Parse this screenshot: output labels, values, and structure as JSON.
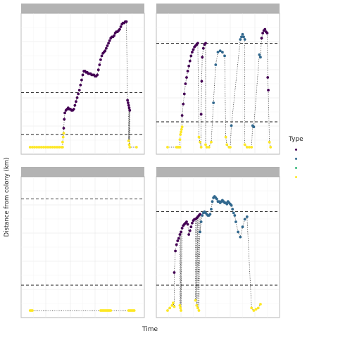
{
  "chart_data": {
    "type": "scatter",
    "xlabel": "Time",
    "ylabel": "Distance from colony (km)",
    "legend": {
      "title": "Type",
      "position": "right",
      "entries": [
        {
          "key": "type1",
          "label": "",
          "color": "#440154"
        },
        {
          "key": "type2",
          "label": "",
          "color": "#31688E"
        },
        {
          "key": "type3",
          "label": "",
          "color": "#35B779"
        },
        {
          "key": "type4",
          "label": "",
          "color": "#FDE725"
        }
      ]
    },
    "connector": "dotted",
    "grid": true,
    "strip_color": "#b3b3b3",
    "ylim": [
      0,
      100
    ],
    "xlim": [
      0,
      100
    ],
    "panels": [
      {
        "reference_lines_y": [
          10,
          43
        ],
        "series": [
          {
            "type": "type4",
            "x": [
              3,
              5,
              7,
              9,
              11,
              13,
              15,
              17,
              19,
              21,
              23,
              25,
              27,
              29,
              31,
              32
            ],
            "y": [
              0,
              0,
              0,
              0,
              0,
              0,
              0,
              0,
              0,
              0,
              0,
              0,
              0,
              0,
              0,
              0
            ]
          },
          {
            "type": "type4",
            "x": [
              32,
              32.5,
              33
            ],
            "y": [
              4,
              8,
              11
            ]
          },
          {
            "type": "type1",
            "x": [
              33,
              33.5,
              34,
              35,
              36,
              37,
              38,
              39,
              40,
              41,
              42,
              43,
              44,
              45,
              46,
              47,
              48,
              49,
              50,
              51,
              52,
              53,
              54,
              55,
              56,
              57,
              58,
              59,
              60,
              61,
              62,
              63,
              64,
              65,
              66,
              67,
              68,
              69,
              70,
              71,
              72,
              73,
              74,
              75,
              76,
              77,
              78,
              79,
              80,
              81,
              82,
              83,
              84,
              85,
              86,
              87,
              88,
              89
            ],
            "y": [
              15,
              22,
              27,
              29,
              30,
              31,
              30,
              30,
              29,
              29,
              30,
              33,
              36,
              39,
              42,
              45,
              49,
              53,
              57,
              60,
              60,
              59,
              59,
              58,
              58,
              58,
              57,
              57,
              57,
              56,
              56,
              57,
              61,
              65,
              69,
              72,
              74,
              75,
              76,
              78,
              80,
              82,
              84,
              86,
              87,
              87,
              88,
              90,
              91,
              91,
              92,
              93,
              95,
              97,
              98,
              98,
              99,
              99
            ]
          },
          {
            "type": "type1",
            "x": [
              90,
              90.5,
              91,
              91.5,
              92
            ],
            "y": [
              37,
              35,
              33,
              31,
              29
            ]
          },
          {
            "type": "type4",
            "x": [
              91,
              91.5,
              92,
              98
            ],
            "y": [
              5,
              2,
              0,
              0
            ]
          }
        ]
      },
      {
        "reference_lines_y": [
          20,
          82
        ],
        "series": [
          {
            "type": "type4",
            "x": [
              5,
              13,
              14,
              15,
              16
            ],
            "y": [
              0,
              0,
              0,
              0,
              0
            ]
          },
          {
            "type": "type4",
            "x": [
              16,
              16.5,
              17,
              17.5,
              18
            ],
            "y": [
              6,
              10,
              12,
              14,
              16
            ]
          },
          {
            "type": "type1",
            "x": [
              18,
              19,
              20,
              21,
              22,
              23,
              24,
              25,
              26,
              27,
              28,
              29,
              30,
              31,
              32
            ],
            "y": [
              25,
              34,
              42,
              50,
              55,
              60,
              64,
              68,
              72,
              75,
              77,
              79,
              80,
              81,
              82
            ]
          },
          {
            "type": "type4",
            "x": [
              33,
              34,
              35
            ],
            "y": [
              8,
              4,
              0
            ]
          },
          {
            "type": "type1",
            "x": [
              35,
              35.5,
              36,
              37,
              38,
              39
            ],
            "y": [
              26,
              52,
              71,
              78,
              81,
              82
            ]
          },
          {
            "type": "type4",
            "x": [
              39,
              40,
              42,
              44
            ],
            "y": [
              2,
              0,
              0,
              4
            ]
          },
          {
            "type": "type2",
            "x": [
              46,
              48,
              50,
              52,
              54,
              56
            ],
            "y": [
              35,
              65,
              75,
              76,
              75,
              72
            ]
          },
          {
            "type": "type4",
            "x": [
              57,
              58,
              60,
              61
            ],
            "y": [
              8,
              2,
              0,
              0
            ]
          },
          {
            "type": "type2",
            "x": [
              62
            ],
            "y": [
              17
            ]
          },
          {
            "type": "type2",
            "x": [
              70,
              71,
              72,
              73,
              74
            ],
            "y": [
              85,
              87,
              89,
              87,
              85
            ]
          },
          {
            "type": "type4",
            "x": [
              74,
              76,
              78,
              80
            ],
            "y": [
              2,
              0,
              0,
              0
            ]
          },
          {
            "type": "type2",
            "x": [
              81,
              82
            ],
            "y": [
              17,
              16
            ]
          },
          {
            "type": "type2",
            "x": [
              87,
              88
            ],
            "y": [
              73,
              71
            ]
          },
          {
            "type": "type1",
            "x": [
              89,
              90,
              91,
              92,
              93,
              94
            ],
            "y": [
              86,
              90,
              92,
              93,
              91,
              90
            ]
          },
          {
            "type": "type1",
            "x": [
              94.5,
              95
            ],
            "y": [
              55,
              45
            ]
          },
          {
            "type": "type4",
            "x": [
              96,
              97
            ],
            "y": [
              4,
              0
            ]
          }
        ]
      },
      {
        "reference_lines_y": [
          20,
          88
        ],
        "series": [
          {
            "type": "type4",
            "x": [
              3,
              4,
              5
            ],
            "y": [
              0,
              0,
              0
            ]
          },
          {
            "type": "type4",
            "x": [
              66,
              67,
              68,
              69,
              70,
              71,
              72,
              73,
              74,
              75
            ],
            "y": [
              0,
              0,
              0,
              0,
              0,
              0,
              0,
              0,
              0,
              0
            ]
          },
          {
            "type": "type4",
            "x": [
              91,
              92,
              93,
              94,
              95,
              96
            ],
            "y": [
              0,
              0,
              0,
              0,
              0,
              0
            ]
          }
        ]
      },
      {
        "reference_lines_y": [
          20,
          78
        ],
        "series": [
          {
            "type": "type4",
            "x": [
              5,
              7,
              9,
              10,
              11
            ],
            "y": [
              0,
              2,
              4,
              6,
              3
            ]
          },
          {
            "type": "type1",
            "x": [
              11,
              12,
              13,
              14,
              15,
              16,
              17,
              18,
              19,
              20,
              21,
              22,
              23
            ],
            "y": [
              30,
              47,
              52,
              55,
              57,
              60,
              62,
              65,
              67,
              68,
              69,
              70,
              68
            ]
          },
          {
            "type": "type4",
            "x": [
              16,
              16.5,
              17
            ],
            "y": [
              4,
              2,
              0
            ]
          },
          {
            "type": "type1",
            "x": [
              24,
              25,
              26,
              27,
              28,
              29,
              30,
              31,
              32,
              33,
              34
            ],
            "y": [
              60,
              63,
              66,
              69,
              71,
              72,
              72,
              73,
              74,
              75,
              76
            ]
          },
          {
            "type": "type4",
            "x": [
              30,
              31,
              32,
              33
            ],
            "y": [
              8,
              4,
              2,
              0
            ]
          },
          {
            "type": "type2",
            "x": [
              34,
              35,
              36,
              37,
              38,
              39,
              40,
              41,
              42,
              43,
              44,
              45,
              46,
              47,
              48,
              49,
              50,
              51,
              52,
              53,
              54,
              55,
              56,
              57,
              58,
              59,
              60,
              61,
              62,
              63,
              64,
              65
            ],
            "y": [
              62,
              70,
              75,
              77,
              78,
              77,
              76,
              75,
              75,
              76,
              80,
              86,
              89,
              90,
              89,
              88,
              86,
              86,
              85,
              86,
              87,
              86,
              85,
              85,
              84,
              86,
              85,
              84,
              83,
              80,
              77,
              75
            ]
          },
          {
            "type": "type2",
            "x": [
              66,
              68,
              70,
              72,
              74,
              76
            ],
            "y": [
              70,
              62,
              58,
              66,
              72,
              74
            ]
          },
          {
            "type": "type4",
            "x": [
              80,
              82,
              84,
              86,
              88
            ],
            "y": [
              2,
              0,
              1,
              2,
              5
            ]
          }
        ]
      }
    ]
  }
}
